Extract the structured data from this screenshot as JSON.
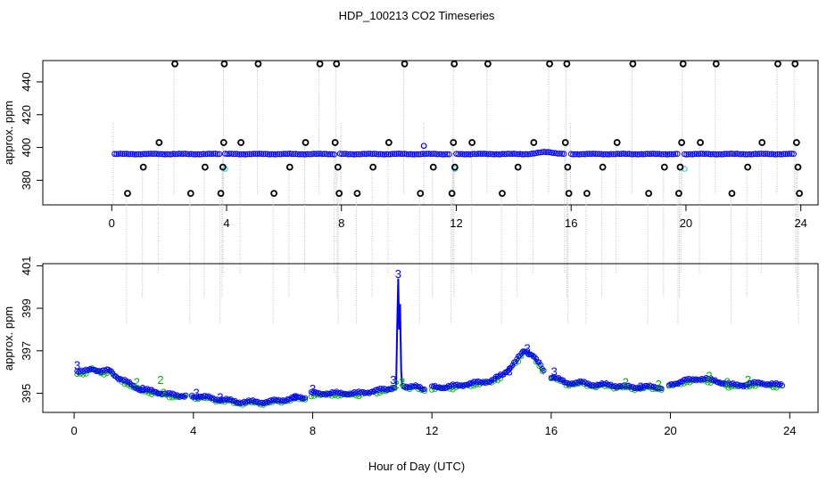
{
  "figure": {
    "title": "HDP_100213  CO2 Timeseries",
    "xlabel": "Hour of Day (UTC)"
  },
  "colors": {
    "axis": "#000000",
    "calibration": "#000000",
    "drop_line": "#bbbbbb",
    "sample": "#0000ff",
    "flagged": "#38d7e8",
    "label_2": "#00b000",
    "label_3": "#0000ff"
  },
  "chart_data": [
    {
      "type": "scatter",
      "panel": "top",
      "title": "",
      "xlabel": "",
      "ylabel": "approx. ppm",
      "xlim": [
        -2.4,
        24.6
      ],
      "ylim": [
        365,
        453
      ],
      "x_ticks": [
        0,
        4,
        8,
        12,
        16,
        20,
        24
      ],
      "y_ticks": [
        380,
        400,
        420,
        440
      ],
      "grid": false,
      "series": [
        {
          "role": "calibration",
          "x": [
            0.55,
            1.1,
            1.65,
            2.2,
            2.75,
            3.25,
            3.8,
            3.87,
            3.9,
            3.92,
            4.5,
            5.1,
            5.65,
            6.2,
            6.75,
            7.25,
            7.78,
            7.83,
            7.88,
            7.92,
            8.55,
            9.1,
            9.65,
            10.2,
            10.75,
            11.2,
            11.85,
            11.9,
            11.93,
            11.95,
            12.55,
            13.1,
            13.6,
            14.15,
            14.7,
            15.25,
            15.8,
            15.85,
            15.88,
            15.92,
            16.55,
            17.1,
            17.6,
            18.15,
            18.7,
            19.25,
            19.75,
            19.8,
            19.85,
            19.9,
            20.5,
            21.05,
            21.6,
            22.15,
            22.65,
            23.2,
            23.8,
            23.85,
            23.9,
            23.95
          ],
          "y": [
            372,
            388,
            403,
            451,
            372,
            388,
            372,
            388,
            403,
            451,
            403,
            451,
            372,
            388,
            403,
            451,
            403,
            451,
            388,
            372,
            372,
            388,
            403,
            451,
            372,
            388,
            372,
            403,
            451,
            388,
            403,
            451,
            372,
            388,
            403,
            451,
            403,
            451,
            388,
            372,
            372,
            388,
            403,
            451,
            372,
            388,
            372,
            388,
            403,
            451,
            403,
            451,
            372,
            388,
            403,
            451,
            451,
            403,
            388,
            372
          ]
        },
        {
          "role": "flagged",
          "x": [
            3.95,
            11.95,
            19.95
          ],
          "y": [
            387,
            387,
            387
          ]
        }
      ],
      "segments_hours": [
        [
          0.1,
          3.75
        ],
        [
          3.95,
          7.75
        ],
        [
          7.95,
          11.75
        ],
        [
          12.0,
          15.75
        ],
        [
          16.0,
          19.7
        ],
        [
          19.95,
          23.75
        ]
      ],
      "baseline_ppm": 396,
      "spike": {
        "x": 10.87,
        "y": 401
      }
    },
    {
      "type": "line",
      "panel": "bottom",
      "title": "",
      "xlabel": "Hour of Day (UTC)",
      "ylabel": "approx. ppm",
      "xlim": [
        -1.05,
        24.95
      ],
      "ylim": [
        394.1,
        401.1
      ],
      "x_ticks": [
        0,
        4,
        8,
        12,
        16,
        20,
        24
      ],
      "y_ticks": [
        395,
        397,
        399,
        401
      ],
      "grid": false,
      "series": [
        {
          "name": "2",
          "color_key": "label_2"
        },
        {
          "name": "3",
          "color_key": "label_3"
        }
      ],
      "profile": {
        "x": [
          0.0,
          0.3,
          0.6,
          0.9,
          1.2,
          1.5,
          1.8,
          2.2,
          2.6,
          3.0,
          3.4,
          3.75,
          3.95,
          4.5,
          5.0,
          5.5,
          6.0,
          6.5,
          7.0,
          7.5,
          7.75,
          7.95,
          8.5,
          9.0,
          9.5,
          10.0,
          10.5,
          10.75,
          10.85,
          10.9,
          10.95,
          11.05,
          11.2,
          11.5,
          11.75,
          12.0,
          12.5,
          13.0,
          13.5,
          14.0,
          14.4,
          14.8,
          15.1,
          15.4,
          15.6,
          15.75,
          16.0,
          16.5,
          17.0,
          17.5,
          18.0,
          18.5,
          19.0,
          19.5,
          19.7,
          19.95,
          20.5,
          21.0,
          21.5,
          22.0,
          22.5,
          23.0,
          23.5,
          23.75
        ],
        "y": [
          396.0,
          396.0,
          396.2,
          396.0,
          396.1,
          395.7,
          395.5,
          395.2,
          395.1,
          395.0,
          394.9,
          394.9,
          394.9,
          394.8,
          394.7,
          394.6,
          394.6,
          394.6,
          394.7,
          394.8,
          394.8,
          395.0,
          395.0,
          395.0,
          395.0,
          395.1,
          395.2,
          395.3,
          397.5,
          400.4,
          397.0,
          395.4,
          395.3,
          395.3,
          395.2,
          395.3,
          395.3,
          395.4,
          395.5,
          395.6,
          395.9,
          396.5,
          397.0,
          396.8,
          396.4,
          396.0,
          395.8,
          395.5,
          395.5,
          395.4,
          395.4,
          395.3,
          395.3,
          395.3,
          395.3,
          395.4,
          395.6,
          395.7,
          395.6,
          395.4,
          395.4,
          395.5,
          395.4,
          395.4
        ]
      },
      "segments_hours": [
        [
          0.1,
          3.75
        ],
        [
          3.95,
          7.75
        ],
        [
          7.95,
          10.75
        ],
        [
          11.05,
          11.75
        ],
        [
          12.0,
          15.75
        ],
        [
          16.0,
          19.7
        ],
        [
          19.95,
          23.75
        ]
      ],
      "annotations": [
        {
          "text": "3",
          "x": 0.1,
          "y": 396.3,
          "color_key": "label_3"
        },
        {
          "text": "3",
          "x": 2.3,
          "y": 395.2,
          "color_key": "label_3"
        },
        {
          "text": "2",
          "x": 2.1,
          "y": 395.5,
          "color_key": "label_2"
        },
        {
          "text": "2",
          "x": 2.9,
          "y": 395.6,
          "color_key": "label_2"
        },
        {
          "text": "2",
          "x": 3.0,
          "y": 395.0,
          "color_key": "label_2"
        },
        {
          "text": "3",
          "x": 4.1,
          "y": 395.0,
          "color_key": "label_3"
        },
        {
          "text": "3",
          "x": 4.9,
          "y": 394.8,
          "color_key": "label_3"
        },
        {
          "text": "3",
          "x": 7.4,
          "y": 394.8,
          "color_key": "label_3"
        },
        {
          "text": "3",
          "x": 8.0,
          "y": 395.2,
          "color_key": "label_3"
        },
        {
          "text": "3",
          "x": 10.7,
          "y": 395.6,
          "color_key": "label_3"
        },
        {
          "text": "2",
          "x": 10.8,
          "y": 395.4,
          "color_key": "label_2"
        },
        {
          "text": "3",
          "x": 10.87,
          "y": 400.6,
          "color_key": "label_3"
        },
        {
          "text": "2",
          "x": 11.0,
          "y": 395.5,
          "color_key": "label_2"
        },
        {
          "text": "3",
          "x": 14.6,
          "y": 396.0,
          "color_key": "label_3"
        },
        {
          "text": "3",
          "x": 15.2,
          "y": 397.1,
          "color_key": "label_3"
        },
        {
          "text": "3",
          "x": 16.1,
          "y": 396.0,
          "color_key": "label_3"
        },
        {
          "text": "2",
          "x": 18.5,
          "y": 395.5,
          "color_key": "label_2"
        },
        {
          "text": "3",
          "x": 19.0,
          "y": 395.3,
          "color_key": "label_3"
        },
        {
          "text": "2",
          "x": 19.6,
          "y": 395.4,
          "color_key": "label_2"
        },
        {
          "text": "2",
          "x": 21.3,
          "y": 395.8,
          "color_key": "label_2"
        },
        {
          "text": "2",
          "x": 21.9,
          "y": 395.5,
          "color_key": "label_2"
        },
        {
          "text": "2",
          "x": 22.6,
          "y": 395.6,
          "color_key": "label_2"
        }
      ]
    }
  ]
}
